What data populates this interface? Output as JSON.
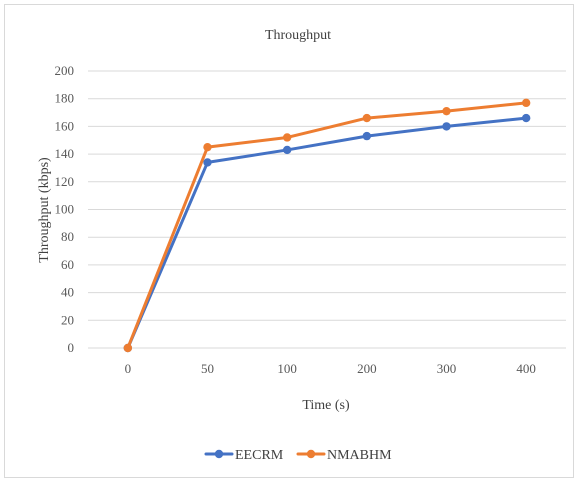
{
  "chart_data": {
    "type": "line",
    "title": "Throughput",
    "xlabel": "Time (s)",
    "ylabel": "Throughput (kbps)",
    "categories": [
      "0",
      "50",
      "100",
      "200",
      "300",
      "400"
    ],
    "ylim": [
      0,
      200
    ],
    "yticks": [
      "0",
      "20",
      "40",
      "60",
      "80",
      "100",
      "120",
      "140",
      "160",
      "180",
      "200"
    ],
    "grid": true,
    "legend_position": "bottom",
    "series": [
      {
        "name": "EECRM",
        "color": "#4472c4",
        "values": [
          0,
          134,
          143,
          153,
          160,
          166
        ]
      },
      {
        "name": "NMABHM",
        "color": "#ed7d31",
        "values": [
          0,
          145,
          152,
          166,
          171,
          177
        ]
      }
    ]
  }
}
